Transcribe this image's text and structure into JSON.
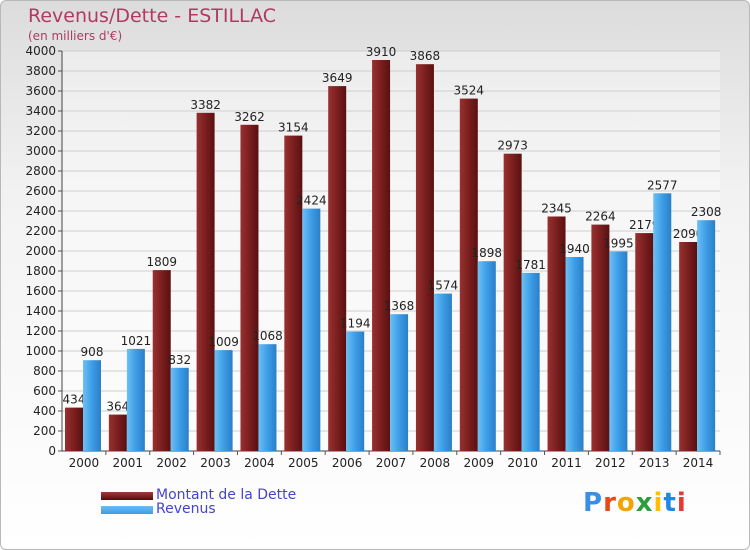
{
  "title": "Revenus/Dette - ESTILLAC",
  "subtitle": "(en milliers d'€)",
  "logo": {
    "text": "Proxiti",
    "colors": [
      "#3a8ee6",
      "#e64a19",
      "#f2a400",
      "#2e9e3a",
      "#ffbf00",
      "#1e88e5",
      "#e53935"
    ]
  },
  "colors": {
    "debt": "#7a1f1f",
    "revenue": "#3d9de6",
    "title": "#b03a62"
  },
  "chart_data": {
    "type": "bar",
    "categories": [
      "2000",
      "2001",
      "2002",
      "2003",
      "2004",
      "2005",
      "2006",
      "2007",
      "2008",
      "2009",
      "2010",
      "2011",
      "2012",
      "2013",
      "2014"
    ],
    "series": [
      {
        "name": "Montant de la Dette",
        "values": [
          434,
          364,
          1809,
          3382,
          3262,
          3154,
          3649,
          3910,
          3868,
          3524,
          2973,
          2345,
          2264,
          2179,
          2090
        ]
      },
      {
        "name": "Revenus",
        "values": [
          908,
          1021,
          832,
          1009,
          1068,
          2424,
          1194,
          1368,
          1574,
          1898,
          1781,
          1940,
          1995,
          2577,
          2308
        ]
      }
    ],
    "ylim": [
      0,
      4000
    ],
    "ytick_step": 200,
    "grid": true
  }
}
